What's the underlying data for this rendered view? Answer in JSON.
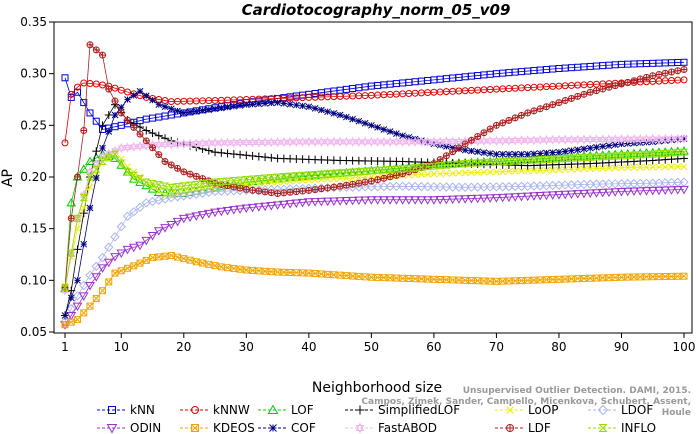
{
  "chart_data": {
    "type": "line",
    "title": "Cardiotocography_norm_05_v09",
    "xlabel": "Neighborhood size",
    "ylabel": "AP",
    "xlim": [
      1,
      100
    ],
    "ylim": [
      0.05,
      0.35
    ],
    "xticks": [
      "1",
      "10",
      "20",
      "30",
      "40",
      "50",
      "60",
      "70",
      "80",
      "90",
      "100"
    ],
    "yticks": [
      "0.05",
      "0.10",
      "0.15",
      "0.20",
      "0.25",
      "0.30",
      "0.35"
    ],
    "grid": false,
    "legend_position": "bottom",
    "series": [
      {
        "name": "kNN",
        "color": "#0000dd",
        "marker": "square",
        "points": [
          [
            1,
            0.296
          ],
          [
            2,
            0.277
          ],
          [
            3,
            0.282
          ],
          [
            5,
            0.262
          ],
          [
            7,
            0.246
          ],
          [
            10,
            0.25
          ],
          [
            14,
            0.256
          ],
          [
            20,
            0.262
          ],
          [
            30,
            0.272
          ],
          [
            40,
            0.28
          ],
          [
            50,
            0.288
          ],
          [
            60,
            0.294
          ],
          [
            70,
            0.3
          ],
          [
            80,
            0.305
          ],
          [
            90,
            0.309
          ],
          [
            100,
            0.311
          ]
        ]
      },
      {
        "name": "kNNW",
        "color": "#dd0000",
        "marker": "circle",
        "points": [
          [
            1,
            0.233
          ],
          [
            2,
            0.28
          ],
          [
            3,
            0.287
          ],
          [
            4,
            0.291
          ],
          [
            6,
            0.29
          ],
          [
            8,
            0.288
          ],
          [
            10,
            0.284
          ],
          [
            14,
            0.277
          ],
          [
            18,
            0.273
          ],
          [
            25,
            0.274
          ],
          [
            35,
            0.276
          ],
          [
            50,
            0.279
          ],
          [
            60,
            0.282
          ],
          [
            70,
            0.285
          ],
          [
            80,
            0.288
          ],
          [
            90,
            0.291
          ],
          [
            100,
            0.294
          ]
        ]
      },
      {
        "name": "LOF",
        "color": "#00cc00",
        "marker": "triangle-up",
        "points": [
          [
            1,
            0.092
          ],
          [
            2,
            0.175
          ],
          [
            3,
            0.2
          ],
          [
            5,
            0.215
          ],
          [
            7,
            0.222
          ],
          [
            9,
            0.218
          ],
          [
            12,
            0.198
          ],
          [
            16,
            0.185
          ],
          [
            20,
            0.184
          ],
          [
            30,
            0.195
          ],
          [
            40,
            0.201
          ],
          [
            50,
            0.206
          ],
          [
            60,
            0.212
          ],
          [
            70,
            0.215
          ],
          [
            80,
            0.219
          ],
          [
            90,
            0.222
          ],
          [
            100,
            0.225
          ]
        ]
      },
      {
        "name": "SimplifiedLOF",
        "color": "#000000",
        "marker": "plus",
        "points": [
          [
            1,
            0.066
          ],
          [
            2,
            0.09
          ],
          [
            3,
            0.13
          ],
          [
            5,
            0.2
          ],
          [
            7,
            0.25
          ],
          [
            9,
            0.27
          ],
          [
            11,
            0.255
          ],
          [
            14,
            0.245
          ],
          [
            18,
            0.235
          ],
          [
            25,
            0.224
          ],
          [
            35,
            0.218
          ],
          [
            45,
            0.216
          ],
          [
            55,
            0.215
          ],
          [
            65,
            0.213
          ],
          [
            75,
            0.211
          ],
          [
            85,
            0.213
          ],
          [
            95,
            0.216
          ],
          [
            100,
            0.218
          ]
        ]
      },
      {
        "name": "LoOP",
        "color": "#eeee00",
        "marker": "x",
        "points": [
          [
            1,
            0.095
          ],
          [
            3,
            0.15
          ],
          [
            5,
            0.19
          ],
          [
            7,
            0.215
          ],
          [
            9,
            0.225
          ],
          [
            11,
            0.21
          ],
          [
            14,
            0.195
          ],
          [
            17,
            0.182
          ],
          [
            22,
            0.187
          ],
          [
            30,
            0.193
          ],
          [
            40,
            0.197
          ],
          [
            50,
            0.2
          ],
          [
            60,
            0.203
          ],
          [
            70,
            0.205
          ],
          [
            80,
            0.207
          ],
          [
            90,
            0.209
          ],
          [
            100,
            0.21
          ]
        ]
      },
      {
        "name": "LDOF",
        "color": "#aab4f0",
        "marker": "diamond",
        "points": [
          [
            1,
            0.06
          ],
          [
            3,
            0.085
          ],
          [
            5,
            0.105
          ],
          [
            7,
            0.122
          ],
          [
            9,
            0.142
          ],
          [
            11,
            0.162
          ],
          [
            14,
            0.175
          ],
          [
            18,
            0.18
          ],
          [
            25,
            0.186
          ],
          [
            35,
            0.188
          ],
          [
            45,
            0.19
          ],
          [
            55,
            0.191
          ],
          [
            65,
            0.19
          ],
          [
            75,
            0.191
          ],
          [
            85,
            0.193
          ],
          [
            95,
            0.194
          ],
          [
            100,
            0.195
          ]
        ]
      },
      {
        "name": "ODIN",
        "color": "#9a32cd",
        "marker": "triangle-down",
        "points": [
          [
            1,
            0.057
          ],
          [
            3,
            0.075
          ],
          [
            5,
            0.095
          ],
          [
            7,
            0.112
          ],
          [
            9,
            0.123
          ],
          [
            11,
            0.13
          ],
          [
            13,
            0.134
          ],
          [
            16,
            0.148
          ],
          [
            20,
            0.16
          ],
          [
            25,
            0.166
          ],
          [
            30,
            0.17
          ],
          [
            40,
            0.176
          ],
          [
            50,
            0.178
          ],
          [
            60,
            0.178
          ],
          [
            70,
            0.18
          ],
          [
            80,
            0.183
          ],
          [
            90,
            0.186
          ],
          [
            100,
            0.188
          ]
        ]
      },
      {
        "name": "KDEOS",
        "color": "#f2a500",
        "marker": "square-x",
        "points": [
          [
            1,
            0.057
          ],
          [
            3,
            0.062
          ],
          [
            5,
            0.075
          ],
          [
            7,
            0.09
          ],
          [
            9,
            0.107
          ],
          [
            12,
            0.114
          ],
          [
            15,
            0.122
          ],
          [
            18,
            0.124
          ],
          [
            22,
            0.118
          ],
          [
            26,
            0.113
          ],
          [
            30,
            0.11
          ],
          [
            35,
            0.108
          ],
          [
            40,
            0.107
          ],
          [
            50,
            0.103
          ],
          [
            60,
            0.101
          ],
          [
            70,
            0.099
          ],
          [
            80,
            0.101
          ],
          [
            90,
            0.103
          ],
          [
            100,
            0.104
          ]
        ]
      },
      {
        "name": "COF",
        "color": "#000080",
        "marker": "asterisk",
        "points": [
          [
            1,
            0.066
          ],
          [
            3,
            0.1
          ],
          [
            5,
            0.17
          ],
          [
            7,
            0.228
          ],
          [
            9,
            0.26
          ],
          [
            11,
            0.275
          ],
          [
            13,
            0.283
          ],
          [
            16,
            0.27
          ],
          [
            20,
            0.262
          ],
          [
            25,
            0.266
          ],
          [
            30,
            0.27
          ],
          [
            35,
            0.272
          ],
          [
            40,
            0.268
          ],
          [
            45,
            0.26
          ],
          [
            50,
            0.25
          ],
          [
            55,
            0.24
          ],
          [
            60,
            0.232
          ],
          [
            65,
            0.226
          ],
          [
            70,
            0.222
          ],
          [
            75,
            0.222
          ],
          [
            80,
            0.224
          ],
          [
            85,
            0.228
          ],
          [
            90,
            0.232
          ],
          [
            95,
            0.234
          ],
          [
            100,
            0.237
          ]
        ]
      },
      {
        "name": "FastABOD",
        "color": "#f0b8f0",
        "marker": "triangle-up-down",
        "points": [
          [
            1,
            0.09
          ],
          [
            3,
            0.16
          ],
          [
            5,
            0.205
          ],
          [
            7,
            0.22
          ],
          [
            10,
            0.228
          ],
          [
            15,
            0.231
          ],
          [
            25,
            0.233
          ],
          [
            40,
            0.234
          ],
          [
            60,
            0.234
          ],
          [
            80,
            0.236
          ],
          [
            100,
            0.237
          ]
        ]
      },
      {
        "name": "LDF",
        "color": "#aa2020",
        "marker": "circle-plus",
        "points": [
          [
            1,
            0.093
          ],
          [
            2,
            0.16
          ],
          [
            3,
            0.2
          ],
          [
            4,
            0.245
          ],
          [
            5,
            0.328
          ],
          [
            6,
            0.323
          ],
          [
            7,
            0.318
          ],
          [
            8,
            0.285
          ],
          [
            10,
            0.262
          ],
          [
            12,
            0.248
          ],
          [
            14,
            0.235
          ],
          [
            17,
            0.215
          ],
          [
            20,
            0.205
          ],
          [
            25,
            0.194
          ],
          [
            30,
            0.188
          ],
          [
            35,
            0.184
          ],
          [
            40,
            0.187
          ],
          [
            45,
            0.191
          ],
          [
            50,
            0.196
          ],
          [
            55,
            0.203
          ],
          [
            60,
            0.213
          ],
          [
            65,
            0.232
          ],
          [
            70,
            0.25
          ],
          [
            75,
            0.262
          ],
          [
            80,
            0.272
          ],
          [
            85,
            0.282
          ],
          [
            90,
            0.29
          ],
          [
            95,
            0.298
          ],
          [
            100,
            0.304
          ]
        ]
      },
      {
        "name": "INFLO",
        "color": "#99dd00",
        "marker": "hourglass",
        "points": [
          [
            1,
            0.093
          ],
          [
            3,
            0.16
          ],
          [
            5,
            0.2
          ],
          [
            7,
            0.215
          ],
          [
            9,
            0.222
          ],
          [
            11,
            0.205
          ],
          [
            14,
            0.195
          ],
          [
            18,
            0.19
          ],
          [
            25,
            0.195
          ],
          [
            35,
            0.2
          ],
          [
            45,
            0.204
          ],
          [
            55,
            0.208
          ],
          [
            65,
            0.213
          ],
          [
            75,
            0.216
          ],
          [
            85,
            0.219
          ],
          [
            95,
            0.222
          ],
          [
            100,
            0.224
          ]
        ]
      }
    ]
  },
  "watermark": {
    "line1": "Unsupervised Outlier Detection. DAMI, 2015.",
    "line2": "Campos, Zimek, Sander, Campello, Micenkova, Schubert, Assent, Houle"
  }
}
